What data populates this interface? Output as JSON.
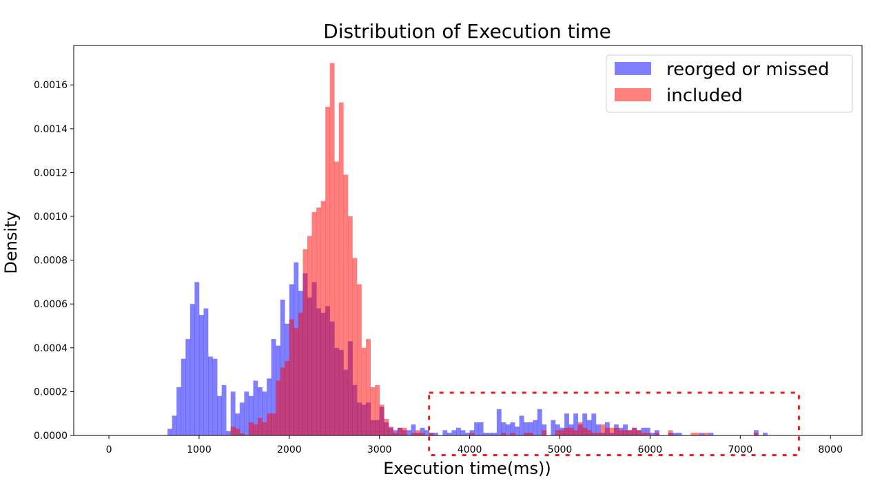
{
  "chart_data": {
    "type": "bar",
    "subtype": "overlapping-histogram",
    "title": "Distribution of Execution time",
    "xlabel": "Execution time(ms))",
    "ylabel": "Density",
    "xlim": [
      -390,
      8350
    ],
    "ylim": [
      0,
      0.00178
    ],
    "xticks": [
      0,
      1000,
      2000,
      3000,
      4000,
      5000,
      6000,
      7000,
      8000
    ],
    "xtick_labels": [
      "0",
      "1000",
      "2000",
      "3000",
      "4000",
      "5000",
      "6000",
      "7000",
      "8000"
    ],
    "yticks": [
      0,
      0.0002,
      0.0004,
      0.0006,
      0.0008,
      0.001,
      0.0012,
      0.0014,
      0.0016
    ],
    "ytick_labels": [
      "0.0000",
      "0.0002",
      "0.0004",
      "0.0006",
      "0.0008",
      "0.0010",
      "0.0012",
      "0.0014",
      "0.0016"
    ],
    "grid": false,
    "legend_placement": "top-right",
    "bin_start": 650,
    "bin_width": 50,
    "series": [
      {
        "name": "reorged or missed",
        "color": "#0000ff",
        "alpha": 0.5,
        "values": [
          3e-05,
          9e-05,
          0.00022,
          0.00035,
          0.00044,
          0.0006,
          0.0007,
          0.00055,
          0.00058,
          0.00036,
          0.00035,
          0.00018,
          0.00023,
          2e-05,
          0.0002,
          0.0001,
          0.00015,
          0.0002,
          0.00018,
          0.00025,
          0.00022,
          0.0002,
          0.00026,
          0.00044,
          0.00041,
          0.00062,
          0.00051,
          0.00069,
          0.00079,
          0.00066,
          0.00074,
          0.00063,
          0.0007,
          0.00058,
          0.00056,
          0.00059,
          0.00052,
          0.0004,
          0.00039,
          0.0003,
          0.00043,
          0.00023,
          0.00015,
          0.00014,
          0.00015,
          7e-05,
          7e-05,
          0.00013,
          6e-05,
          3.5e-05,
          2.4e-05,
          3.5e-05,
          2.4e-05,
          2.4e-05,
          5e-05,
          1.2e-05,
          3.5e-05,
          2.4e-05,
          1.2e-05,
          1.2e-05,
          0,
          2.4e-05,
          1.2e-05,
          2.4e-05,
          3.5e-05,
          2.4e-05,
          1.2e-05,
          2.4e-05,
          6e-05,
          6e-05,
          1.2e-05,
          1.2e-05,
          1.2e-05,
          0.00012,
          6e-05,
          5e-05,
          6e-05,
          4e-05,
          9e-05,
          6e-05,
          6e-05,
          7e-05,
          0.00012,
          5e-05,
          0,
          7e-05,
          5e-05,
          3.5e-05,
          0.0001,
          5e-05,
          0.0001,
          5e-05,
          0.0001,
          7e-05,
          0.0001,
          5e-05,
          1.2e-05,
          6e-05,
          1.2e-05,
          5e-05,
          3.5e-05,
          5e-05,
          2.4e-05,
          3.5e-05,
          2.4e-05,
          3.5e-05,
          3.5e-05,
          1.2e-05,
          2.4e-05,
          0,
          0,
          1.2e-05,
          1.2e-05,
          1.2e-05,
          0,
          0,
          0,
          0,
          1.2e-05,
          0,
          1.2e-05,
          0,
          0,
          0,
          0,
          0,
          0,
          0,
          0,
          0,
          2.4e-05,
          0,
          1.2e-05
        ]
      },
      {
        "name": "included",
        "color": "#ff0000",
        "alpha": 0.5,
        "values": [
          0,
          0,
          0,
          0,
          0,
          0,
          0,
          0,
          0,
          0,
          0,
          0,
          0,
          0,
          4e-05,
          3e-05,
          1e-05,
          0,
          6e-05,
          5e-05,
          8e-05,
          6e-05,
          0.0001,
          0.0001,
          0.00025,
          0.00031,
          0.00034,
          0.00053,
          0.00049,
          0.00056,
          0.00085,
          0.00091,
          0.00102,
          0.00104,
          0.00107,
          0.0015,
          0.0017,
          0.00125,
          0.00152,
          0.00119,
          0.001,
          0.00081,
          0.00069,
          0.0004,
          0.00044,
          0.00022,
          0.00023,
          0.00014,
          7.6e-05,
          4e-05,
          1.2e-05,
          3.5e-05,
          3.5e-05,
          0,
          1.2e-05,
          2.4e-05,
          1.2e-05,
          0,
          1.2e-05,
          0,
          0,
          0,
          0,
          0,
          0,
          0,
          0,
          1.2e-05,
          0,
          0,
          0,
          0,
          0,
          0,
          1.2e-05,
          0,
          1.2e-05,
          0,
          0,
          1.2e-05,
          1.2e-05,
          0,
          0,
          2.4e-05,
          0,
          0,
          2.4e-05,
          2.4e-05,
          3.5e-05,
          3.5e-05,
          2.4e-05,
          6e-05,
          3.5e-05,
          2.4e-05,
          1.2e-05,
          1.2e-05,
          5e-05,
          3.5e-05,
          3.5e-05,
          3.5e-05,
          2.4e-05,
          2.4e-05,
          2.4e-05,
          3.5e-05,
          2.4e-05,
          1.2e-05,
          1.2e-05,
          0,
          1.2e-05,
          0,
          0,
          2.4e-05,
          0,
          0,
          0,
          0,
          1.2e-05,
          1.2e-05,
          0,
          1.2e-05,
          0,
          0,
          0,
          0,
          0,
          0,
          0,
          0,
          0,
          0,
          1.2e-05
        ]
      }
    ],
    "annotations": [
      {
        "type": "dashed-rectangle",
        "color": "#e02020",
        "x": [
          3550,
          7650
        ],
        "y": [
          -9e-05,
          0.000195
        ]
      }
    ]
  }
}
